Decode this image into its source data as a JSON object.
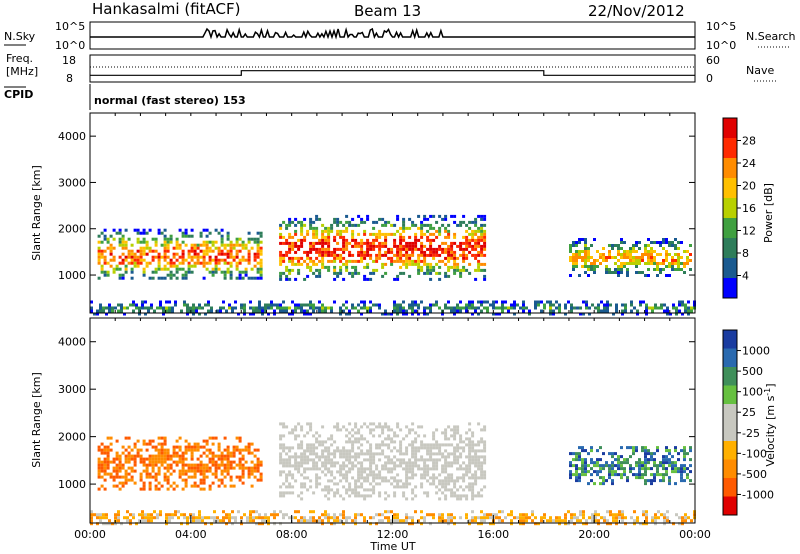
{
  "header": {
    "station": "Hankasalmi (fitACF)",
    "beam": "Beam 13",
    "date": "22/Nov/2012"
  },
  "top_panels": {
    "nsky_label": "N.Sky",
    "nsearch_label": "N.Search",
    "nsky_ticks": [
      "10^5",
      "10^0"
    ],
    "nsearch_ticks": [
      "10^5",
      "10^0"
    ],
    "freq_label_1": "Freq.",
    "freq_label_2": "[MHz]",
    "freq_ticks": [
      "18",
      "8"
    ],
    "nave_label": "Nave",
    "nave_ticks": [
      "60",
      "0"
    ],
    "cpid_label": "CPID",
    "cpid_text": "normal (fast stereo) 153"
  },
  "x_axis": {
    "label": "Time UT",
    "ticks": [
      "00:00",
      "04:00",
      "08:00",
      "12:00",
      "16:00",
      "20:00",
      "00:00"
    ]
  },
  "y_axis": {
    "label": "Slant Range [km]",
    "ticks": [
      "4000",
      "3000",
      "2000",
      "1000"
    ]
  },
  "power_scale": {
    "label": "Power [dB]",
    "levels": [
      "28",
      "24",
      "20",
      "16",
      "12",
      "8",
      "4"
    ],
    "colors": [
      "#e00000",
      "#ff2a00",
      "#ff8c00",
      "#ffc000",
      "#b8d000",
      "#3fa040",
      "#2e7d5a",
      "#1a5a90",
      "#0000ff"
    ]
  },
  "velocity_scale": {
    "label": "Velocity [m s",
    "label_sup": "-1",
    "label_end": "]",
    "levels": [
      "1000",
      "500",
      "100",
      "25",
      "-25",
      "-100",
      "-500",
      "-1000"
    ],
    "colors": [
      "#1a3ca0",
      "#2a6ab0",
      "#3f8f5a",
      "#66c040",
      "#c8c8c0",
      "#c8c8c0",
      "#ffb000",
      "#ff8c00",
      "#ff5a00",
      "#e00000"
    ]
  },
  "chart_data": [
    {
      "type": "line",
      "title": "N.Sky / N.Search",
      "xlabel": "",
      "ylabel": "",
      "x_range": [
        "00:00",
        "24:00"
      ],
      "y_scale": "log",
      "ylim": [
        1,
        100000
      ],
      "series": [
        {
          "name": "N.Sky",
          "values": "roughly constant near upper level with spikes 04:00-14:00"
        },
        {
          "name": "N.Search",
          "values": "dotted"
        }
      ]
    },
    {
      "type": "line",
      "title": "Freq. / Nave",
      "x_range": [
        "00:00",
        "24:00"
      ],
      "series": [
        {
          "name": "Freq. [MHz]",
          "x": [
            "00:00",
            "06:00",
            "06:00",
            "18:00",
            "18:00",
            "24:00"
          ],
          "values": [
            10.5,
            10.5,
            12.2,
            12.2,
            10.5,
            10.5
          ]
        },
        {
          "name": "Nave",
          "x": [
            "00:00",
            "24:00"
          ],
          "values": [
            22,
            22
          ]
        }
      ],
      "ylim_freq": [
        8,
        18
      ],
      "ylim_nave": [
        0,
        60
      ]
    },
    {
      "type": "heatmap",
      "title": "Power [dB]",
      "xlabel": "Time UT",
      "ylabel": "Slant Range [km]",
      "x_range_hours": [
        0,
        24
      ],
      "ylim": [
        180,
        4500
      ],
      "scale_range": [
        0,
        30
      ],
      "features": [
        {
          "from_h": 0.3,
          "to_h": 6.8,
          "range_km": [
            900,
            2000
          ],
          "peak_db": 24
        },
        {
          "from_h": 7.5,
          "to_h": 15.6,
          "range_km": [
            900,
            2300
          ],
          "peak_db": 28
        },
        {
          "from_h": 19.0,
          "to_h": 23.8,
          "range_km": [
            1000,
            1800
          ],
          "peak_db": 20
        },
        {
          "from_h": 0.0,
          "to_h": 24.0,
          "range_km": [
            180,
            450
          ],
          "peak_db": 8
        }
      ]
    },
    {
      "type": "heatmap",
      "title": "Velocity [m s-1]",
      "xlabel": "Time UT",
      "ylabel": "Slant Range [km]",
      "x_range_hours": [
        0,
        24
      ],
      "ylim": [
        180,
        4500
      ],
      "scale_range": [
        -1000,
        1000
      ],
      "features": [
        {
          "from_h": 0.3,
          "to_h": 6.8,
          "range_km": [
            900,
            2000
          ],
          "velocity": -300
        },
        {
          "from_h": 7.5,
          "to_h": 15.6,
          "range_km": [
            700,
            2300
          ],
          "velocity": 0
        },
        {
          "from_h": 19.0,
          "to_h": 23.8,
          "range_km": [
            1000,
            1800
          ],
          "velocity": 200
        },
        {
          "from_h": 0.0,
          "to_h": 24.0,
          "range_km": [
            180,
            450
          ],
          "velocity": -50
        }
      ]
    }
  ]
}
